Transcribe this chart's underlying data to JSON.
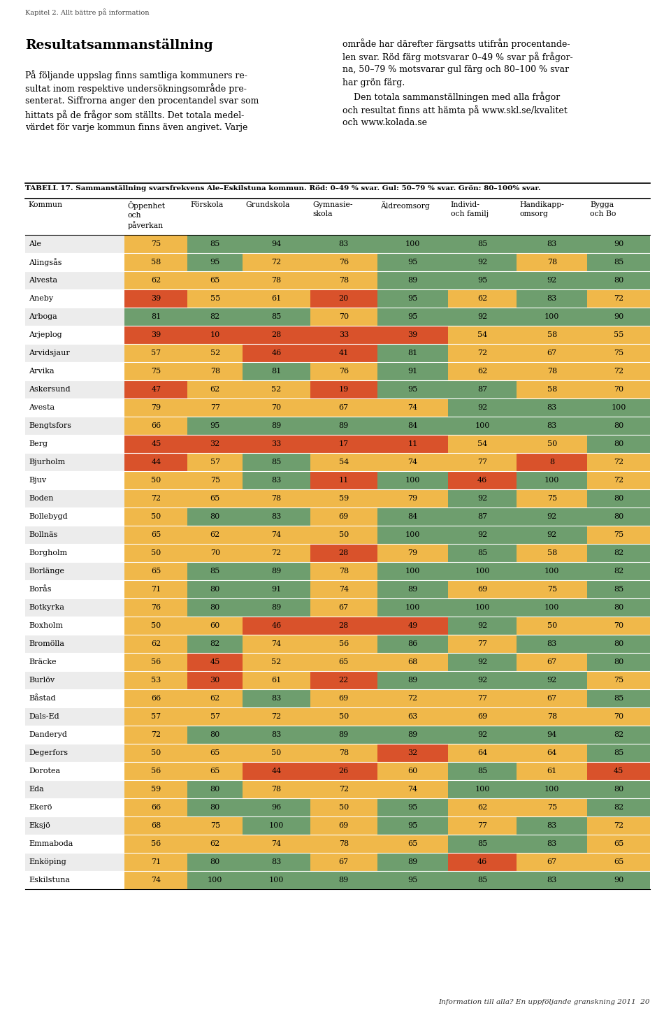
{
  "page_header": "Kapitel 2. Allt bättre på information",
  "title_left": "Resultatsammanställning",
  "table_title": "TABELL 17. Sammanställning svarsfrekvens Ale–Eskilstuna kommun. Röd: 0–49 % svar. Gul: 50–79 % svar. Grön: 80–100% svar.",
  "col_headers": [
    "Kommun",
    "Öppenhet\noch\npåverkan",
    "Förskola",
    "Grundskola",
    "Gymnasie-\nskola",
    "Äldreomsorg",
    "Individ-\noch familj",
    "Handikapp-\nomsorg",
    "Bygga\noch Bo"
  ],
  "footer_right": "Information till alla? En uppföljande granskning 2011  20",
  "red_color": "#d9522b",
  "yellow_color": "#f0b84a",
  "green_color": "#6e9e6e",
  "row_bg_even": "#ececec",
  "row_bg_odd": "#ffffff",
  "rows": [
    [
      "Ale",
      75,
      85,
      94,
      83,
      100,
      85,
      83,
      90
    ],
    [
      "Alingsås",
      58,
      95,
      72,
      76,
      95,
      92,
      78,
      85
    ],
    [
      "Alvesta",
      62,
      65,
      78,
      78,
      89,
      95,
      92,
      80
    ],
    [
      "Aneby",
      39,
      55,
      61,
      20,
      95,
      62,
      83,
      72
    ],
    [
      "Arboga",
      81,
      82,
      85,
      70,
      95,
      92,
      100,
      90
    ],
    [
      "Arjeplog",
      39,
      10,
      28,
      33,
      39,
      54,
      58,
      55
    ],
    [
      "Arvidsjaur",
      57,
      52,
      46,
      41,
      81,
      72,
      67,
      75
    ],
    [
      "Arvika",
      75,
      78,
      81,
      76,
      91,
      62,
      78,
      72
    ],
    [
      "Askersund",
      47,
      62,
      52,
      19,
      95,
      87,
      58,
      70
    ],
    [
      "Avesta",
      79,
      77,
      70,
      67,
      74,
      92,
      83,
      100
    ],
    [
      "Bengtsfors",
      66,
      95,
      89,
      89,
      84,
      100,
      83,
      80
    ],
    [
      "Berg",
      45,
      32,
      33,
      17,
      11,
      54,
      50,
      80
    ],
    [
      "Bjurholm",
      44,
      57,
      85,
      54,
      74,
      77,
      8,
      72
    ],
    [
      "Bjuv",
      50,
      75,
      83,
      11,
      100,
      46,
      100,
      72
    ],
    [
      "Boden",
      72,
      65,
      78,
      59,
      79,
      92,
      75,
      80
    ],
    [
      "Bollebygd",
      50,
      80,
      83,
      69,
      84,
      87,
      92,
      80
    ],
    [
      "Bollnäs",
      65,
      62,
      74,
      50,
      100,
      92,
      92,
      75
    ],
    [
      "Borgholm",
      50,
      70,
      72,
      28,
      79,
      85,
      58,
      82
    ],
    [
      "Borlänge",
      65,
      85,
      89,
      78,
      100,
      100,
      100,
      82
    ],
    [
      "Borås",
      71,
      80,
      91,
      74,
      89,
      69,
      75,
      85
    ],
    [
      "Botkyrka",
      76,
      80,
      89,
      67,
      100,
      100,
      100,
      80
    ],
    [
      "Boxholm",
      50,
      60,
      46,
      28,
      49,
      92,
      50,
      70
    ],
    [
      "Bromölla",
      62,
      82,
      74,
      56,
      86,
      77,
      83,
      80
    ],
    [
      "Bräcke",
      56,
      45,
      52,
      65,
      68,
      92,
      67,
      80
    ],
    [
      "Burlöv",
      53,
      30,
      61,
      22,
      89,
      92,
      92,
      75
    ],
    [
      "Båstad",
      66,
      62,
      83,
      69,
      72,
      77,
      67,
      85
    ],
    [
      "Dals-Ed",
      57,
      57,
      72,
      50,
      63,
      69,
      78,
      70
    ],
    [
      "Danderyd",
      72,
      80,
      83,
      89,
      89,
      92,
      94,
      82
    ],
    [
      "Degerfors",
      50,
      65,
      50,
      78,
      32,
      64,
      64,
      85
    ],
    [
      "Dorotea",
      56,
      65,
      44,
      26,
      60,
      85,
      61,
      45
    ],
    [
      "Eda",
      59,
      80,
      78,
      72,
      74,
      100,
      100,
      80
    ],
    [
      "Ekerö",
      66,
      80,
      96,
      50,
      95,
      62,
      75,
      82
    ],
    [
      "Eksjö",
      68,
      75,
      100,
      69,
      95,
      77,
      83,
      72
    ],
    [
      "Emmaboda",
      56,
      62,
      74,
      78,
      65,
      85,
      83,
      65
    ],
    [
      "Enköping",
      71,
      80,
      83,
      67,
      89,
      46,
      67,
      65
    ],
    [
      "Eskilstuna",
      74,
      100,
      100,
      89,
      95,
      85,
      83,
      90
    ]
  ]
}
